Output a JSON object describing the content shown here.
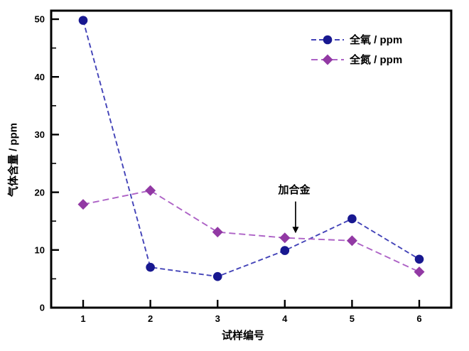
{
  "figure": {
    "background": "#ffffff",
    "frame_color": "#000000"
  },
  "chart_data": {
    "type": "line",
    "title": "",
    "xlabel": "试样编号",
    "ylabel": "气体含量 / ppm",
    "x": [
      1,
      2,
      3,
      4,
      5,
      6
    ],
    "xlim": [
      0.53,
      6.48
    ],
    "ylim": [
      0,
      50
    ],
    "y_major_ticks": [
      0,
      10,
      20,
      30,
      40,
      50
    ],
    "y_minor_ticks": [
      5,
      15,
      25,
      35,
      45
    ],
    "grid": false,
    "legend_position": "top-right-inside",
    "series": [
      {
        "name": "全氧 / ppm",
        "marker": "circle",
        "line_style": "dashed",
        "line_color": "#4343b8",
        "marker_color": "#181890",
        "values": [
          49.8,
          7.0,
          5.4,
          9.9,
          15.4,
          8.4
        ]
      },
      {
        "name": "全氮 / ppm",
        "marker": "diamond",
        "line_style": "dashed",
        "line_color": "#ad62c6",
        "marker_color": "#9239a4",
        "values": [
          17.9,
          20.3,
          13.1,
          12.1,
          11.6,
          6.2
        ]
      }
    ],
    "annotation": {
      "text": "加合金",
      "arrow_x": 4.16,
      "arrow_from_y": 18.4,
      "arrow_to_y": 12.9
    }
  }
}
